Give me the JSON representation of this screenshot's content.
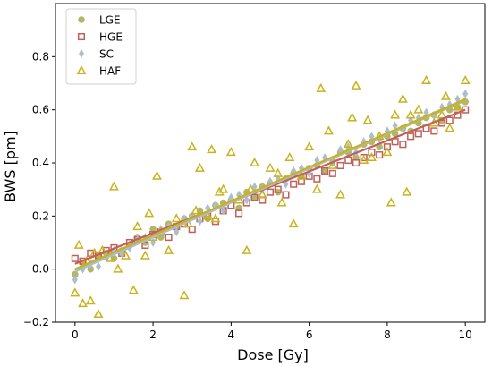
{
  "chart_data": {
    "type": "scatter",
    "title": "",
    "xlabel": "Dose [Gy]",
    "ylabel": "BWS [pm]",
    "xlim": [
      -0.5,
      10.5
    ],
    "ylim": [
      -0.2,
      1.0
    ],
    "xticks": [
      "0",
      "2",
      "4",
      "6",
      "8",
      "10"
    ],
    "yticks": [
      "−0.2",
      "0.0",
      "0.2",
      "0.4",
      "0.6",
      "0.8"
    ],
    "grid": false,
    "legend_position": "top-left",
    "series": [
      {
        "name": "LGE",
        "marker": "circle",
        "color": "#b5b56a",
        "fit": {
          "intercept": -0.005,
          "slope": 0.064
        },
        "x": [
          0.0,
          0.2,
          0.4,
          0.6,
          0.8,
          1.0,
          1.2,
          1.4,
          1.6,
          1.8,
          2.0,
          2.2,
          2.4,
          2.6,
          2.8,
          3.0,
          3.2,
          3.4,
          3.6,
          3.8,
          4.0,
          4.2,
          4.4,
          4.6,
          4.8,
          5.0,
          5.2,
          5.4,
          5.6,
          5.8,
          6.0,
          6.2,
          6.4,
          6.6,
          6.8,
          7.0,
          7.2,
          7.4,
          7.6,
          7.8,
          8.0,
          8.2,
          8.4,
          8.6,
          8.8,
          9.0,
          9.2,
          9.4,
          9.6,
          9.8,
          10.0
        ],
        "y": [
          -0.02,
          0.02,
          0.0,
          0.05,
          0.06,
          0.04,
          0.07,
          0.09,
          0.12,
          0.1,
          0.15,
          0.12,
          0.17,
          0.16,
          0.19,
          0.2,
          0.22,
          0.19,
          0.24,
          0.25,
          0.26,
          0.23,
          0.29,
          0.27,
          0.31,
          0.32,
          0.29,
          0.34,
          0.36,
          0.35,
          0.38,
          0.39,
          0.37,
          0.41,
          0.44,
          0.44,
          0.42,
          0.47,
          0.48,
          0.46,
          0.5,
          0.51,
          0.53,
          0.52,
          0.55,
          0.57,
          0.58,
          0.56,
          0.6,
          0.61,
          0.63
        ]
      },
      {
        "name": "HGE",
        "marker": "square",
        "color": "#c0605a",
        "fit": {
          "intercept": 0.02,
          "slope": 0.058
        },
        "x": [
          0.0,
          0.2,
          0.4,
          0.6,
          0.8,
          1.0,
          1.2,
          1.4,
          1.6,
          1.8,
          2.0,
          2.2,
          2.4,
          2.6,
          2.8,
          3.0,
          3.2,
          3.4,
          3.6,
          3.8,
          4.0,
          4.2,
          4.4,
          4.6,
          4.8,
          5.0,
          5.2,
          5.4,
          5.6,
          5.8,
          6.0,
          6.2,
          6.4,
          6.6,
          6.8,
          7.0,
          7.2,
          7.4,
          7.6,
          7.8,
          8.0,
          8.2,
          8.4,
          8.6,
          8.8,
          9.0,
          9.2,
          9.4,
          9.6,
          9.8,
          10.0
        ],
        "y": [
          0.04,
          0.03,
          0.06,
          0.05,
          0.07,
          0.08,
          0.06,
          0.1,
          0.11,
          0.09,
          0.13,
          0.14,
          0.12,
          0.16,
          0.17,
          0.15,
          0.19,
          0.2,
          0.18,
          0.22,
          0.24,
          0.21,
          0.25,
          0.27,
          0.26,
          0.29,
          0.3,
          0.28,
          0.32,
          0.33,
          0.35,
          0.34,
          0.37,
          0.36,
          0.39,
          0.41,
          0.4,
          0.42,
          0.44,
          0.43,
          0.46,
          0.48,
          0.47,
          0.5,
          0.51,
          0.53,
          0.52,
          0.55,
          0.56,
          0.58,
          0.6
        ]
      },
      {
        "name": "SC",
        "marker": "diamond",
        "color": "#a9bfd1",
        "fit": {
          "intercept": -0.01,
          "slope": 0.065
        },
        "x": [
          0.0,
          0.2,
          0.4,
          0.6,
          0.8,
          1.0,
          1.2,
          1.4,
          1.6,
          1.8,
          2.0,
          2.2,
          2.4,
          2.6,
          2.8,
          3.0,
          3.2,
          3.4,
          3.6,
          3.8,
          4.0,
          4.2,
          4.4,
          4.6,
          4.8,
          5.0,
          5.2,
          5.4,
          5.6,
          5.8,
          6.0,
          6.2,
          6.4,
          6.6,
          6.8,
          7.0,
          7.2,
          7.4,
          7.6,
          7.8,
          8.0,
          8.2,
          8.4,
          8.6,
          8.8,
          9.0,
          9.2,
          9.4,
          9.6,
          9.8,
          10.0
        ],
        "y": [
          -0.04,
          0.0,
          0.02,
          0.01,
          0.05,
          0.07,
          0.06,
          0.08,
          0.11,
          0.12,
          0.1,
          0.15,
          0.16,
          0.14,
          0.19,
          0.2,
          0.18,
          0.23,
          0.24,
          0.22,
          0.27,
          0.28,
          0.26,
          0.31,
          0.3,
          0.33,
          0.34,
          0.32,
          0.37,
          0.38,
          0.36,
          0.41,
          0.42,
          0.4,
          0.45,
          0.46,
          0.44,
          0.48,
          0.5,
          0.49,
          0.52,
          0.54,
          0.53,
          0.56,
          0.57,
          0.59,
          0.58,
          0.61,
          0.62,
          0.64,
          0.66
        ]
      },
      {
        "name": "HAF",
        "marker": "triangle",
        "color": "#c9b21c",
        "fit": {
          "intercept": 0.0,
          "slope": 0.064
        },
        "x": [
          0.0,
          0.1,
          0.2,
          0.3,
          0.4,
          0.5,
          0.6,
          0.7,
          0.9,
          1.0,
          1.1,
          1.3,
          1.5,
          1.6,
          1.8,
          1.9,
          2.0,
          2.1,
          2.2,
          2.4,
          2.6,
          2.8,
          2.9,
          3.0,
          3.1,
          3.2,
          3.4,
          3.5,
          3.6,
          3.7,
          3.8,
          4.0,
          4.2,
          4.4,
          4.5,
          4.6,
          4.8,
          5.0,
          5.2,
          5.3,
          5.5,
          5.6,
          5.8,
          6.0,
          6.2,
          6.3,
          6.5,
          6.6,
          6.8,
          7.0,
          7.1,
          7.2,
          7.4,
          7.5,
          7.6,
          7.8,
          8.0,
          8.1,
          8.2,
          8.4,
          8.5,
          8.6,
          8.8,
          9.0,
          9.2,
          9.4,
          9.5,
          9.6,
          9.8,
          10.0
        ],
        "y": [
          -0.09,
          0.09,
          -0.13,
          0.03,
          -0.12,
          0.06,
          -0.17,
          0.07,
          0.04,
          0.31,
          0.0,
          0.05,
          -0.08,
          0.16,
          0.05,
          0.21,
          0.12,
          0.35,
          0.14,
          0.07,
          0.19,
          -0.1,
          0.17,
          0.46,
          0.22,
          0.38,
          0.2,
          0.45,
          0.19,
          0.29,
          0.3,
          0.44,
          0.26,
          0.07,
          0.3,
          0.4,
          0.28,
          0.38,
          0.36,
          0.25,
          0.42,
          0.17,
          0.35,
          0.46,
          0.3,
          0.68,
          0.52,
          0.39,
          0.28,
          0.47,
          0.57,
          0.69,
          0.41,
          0.56,
          0.42,
          0.5,
          0.44,
          0.25,
          0.58,
          0.64,
          0.29,
          0.58,
          0.6,
          0.71,
          0.55,
          0.58,
          0.65,
          0.53,
          0.61,
          0.71
        ]
      }
    ]
  }
}
